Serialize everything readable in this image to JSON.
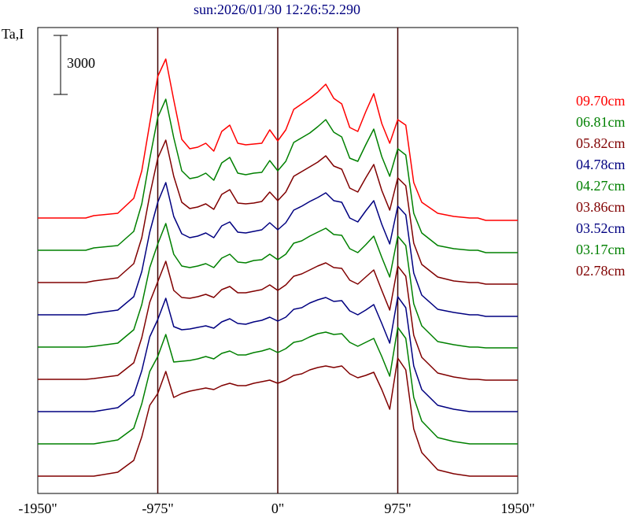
{
  "chart_data": {
    "type": "line",
    "title": "sun:2026/01/30 12:26:52.290",
    "ylabel": "Ta,I",
    "scale_bar": 3000,
    "x": [
      -1950,
      -1560,
      -1495,
      -1300,
      -1170,
      -1105,
      -1040,
      -975,
      -910,
      -845,
      -780,
      -715,
      -650,
      -585,
      -520,
      -455,
      -390,
      -325,
      -260,
      -195,
      -130,
      -65,
      0,
      65,
      130,
      195,
      260,
      325,
      390,
      455,
      520,
      585,
      650,
      715,
      780,
      845,
      910,
      975,
      1040,
      1105,
      1170,
      1300,
      1430,
      1560,
      1625,
      1690,
      1950
    ],
    "xlim": [
      -1950,
      1950
    ],
    "xticks": [
      {
        "value": -1950,
        "label": "-1950\""
      },
      {
        "value": -975,
        "label": "-975\""
      },
      {
        "value": 0,
        "label": "0\""
      },
      {
        "value": 975,
        "label": "975\""
      },
      {
        "value": 1950,
        "label": "1950\""
      }
    ],
    "grid": true,
    "series": [
      {
        "name": "09.70cm",
        "color": "#ff0000",
        "values": [
          0,
          0,
          120,
          240,
          1000,
          2400,
          4800,
          7200,
          8080,
          6000,
          4000,
          3520,
          3600,
          3800,
          3400,
          4400,
          4720,
          3800,
          3720,
          3760,
          3800,
          4480,
          3920,
          4480,
          5520,
          5800,
          6080,
          6400,
          6800,
          6080,
          5800,
          4600,
          4400,
          5400,
          6320,
          4800,
          3800,
          5000,
          4720,
          1800,
          800,
          240,
          80,
          0,
          0,
          -120,
          -120
        ]
      },
      {
        "name": "06.81cm",
        "color": "#008000",
        "values": [
          0,
          0,
          120,
          240,
          960,
          2360,
          4640,
          6760,
          7680,
          5720,
          4040,
          3640,
          3720,
          3920,
          3560,
          4440,
          4720,
          3920,
          3840,
          3920,
          3960,
          4560,
          4040,
          4520,
          5480,
          5720,
          5960,
          6280,
          6640,
          6000,
          5760,
          4680,
          4520,
          5360,
          6160,
          4760,
          3760,
          5160,
          4840,
          1880,
          880,
          240,
          80,
          0,
          0,
          -120,
          -120
        ]
      },
      {
        "name": "05.82cm",
        "color": "#800000",
        "values": [
          0,
          0,
          80,
          240,
          960,
          2280,
          4440,
          6320,
          7240,
          5400,
          4080,
          3760,
          3840,
          4000,
          3720,
          4480,
          4720,
          4040,
          4000,
          4040,
          4120,
          4600,
          4160,
          4600,
          5400,
          5640,
          5880,
          6120,
          6440,
          5920,
          5760,
          4800,
          4600,
          5320,
          6000,
          4680,
          3680,
          5320,
          4920,
          2000,
          920,
          280,
          80,
          0,
          0,
          -80,
          -80
        ]
      },
      {
        "name": "04.78cm",
        "color": "#000080",
        "values": [
          0,
          0,
          80,
          240,
          920,
          2200,
          4200,
          5720,
          6720,
          5000,
          4120,
          3920,
          4000,
          4160,
          3920,
          4520,
          4720,
          4200,
          4160,
          4240,
          4320,
          4680,
          4320,
          4680,
          5320,
          5520,
          5760,
          5960,
          6200,
          5800,
          5720,
          4920,
          4720,
          5280,
          5800,
          4600,
          3600,
          5520,
          5080,
          2120,
          1000,
          280,
          120,
          0,
          0,
          -80,
          -80
        ]
      },
      {
        "name": "04.27cm",
        "color": "#008000",
        "values": [
          0,
          0,
          40,
          200,
          880,
          2160,
          4040,
          5240,
          6280,
          4720,
          4120,
          4040,
          4120,
          4240,
          4040,
          4520,
          4720,
          4320,
          4280,
          4400,
          4440,
          4720,
          4440,
          4720,
          5280,
          5400,
          5640,
          5840,
          6040,
          5720,
          5680,
          5000,
          4800,
          5200,
          5640,
          4560,
          3560,
          5640,
          5160,
          2200,
          1080,
          280,
          120,
          0,
          0,
          -40,
          -40
        ]
      },
      {
        "name": "03.86cm",
        "color": "#800000",
        "values": [
          0,
          0,
          40,
          200,
          840,
          2120,
          3920,
          4960,
          6000,
          4520,
          4160,
          4120,
          4200,
          4320,
          4160,
          4560,
          4720,
          4400,
          4400,
          4480,
          4560,
          4800,
          4520,
          4800,
          5240,
          5360,
          5560,
          5760,
          5920,
          5680,
          5640,
          5040,
          4840,
          5200,
          5560,
          4520,
          3520,
          5760,
          5240,
          2240,
          1120,
          320,
          120,
          0,
          0,
          -40,
          -40
        ]
      },
      {
        "name": "03.52cm",
        "color": "#000080",
        "values": [
          0,
          0,
          0,
          200,
          840,
          2080,
          3800,
          4680,
          5760,
          4320,
          4160,
          4200,
          4280,
          4360,
          4240,
          4560,
          4720,
          4480,
          4440,
          4560,
          4640,
          4800,
          4600,
          4800,
          5200,
          5280,
          5520,
          5680,
          5800,
          5600,
          5640,
          5120,
          4920,
          5160,
          5440,
          4480,
          3480,
          5840,
          5280,
          2320,
          1120,
          320,
          120,
          0,
          0,
          0,
          0
        ]
      },
      {
        "name": "03.17cm",
        "color": "#008000",
        "values": [
          0,
          0,
          0,
          200,
          800,
          2040,
          3680,
          4440,
          5560,
          4160,
          4200,
          4240,
          4320,
          4440,
          4320,
          4600,
          4720,
          4520,
          4520,
          4640,
          4720,
          4840,
          4640,
          4840,
          5160,
          5240,
          5440,
          5600,
          5680,
          5560,
          5600,
          5160,
          4960,
          5160,
          5360,
          4440,
          3440,
          5920,
          5360,
          2360,
          1160,
          320,
          120,
          0,
          0,
          0,
          0
        ]
      },
      {
        "name": "02.78cm",
        "color": "#800000",
        "values": [
          0,
          0,
          0,
          200,
          800,
          2000,
          3600,
          4200,
          5320,
          4000,
          4200,
          4320,
          4400,
          4480,
          4400,
          4600,
          4720,
          4600,
          4600,
          4720,
          4800,
          4880,
          4720,
          4880,
          5120,
          5200,
          5400,
          5520,
          5600,
          5520,
          5600,
          5200,
          5000,
          5120,
          5280,
          4400,
          3400,
          6000,
          5400,
          2400,
          1200,
          320,
          120,
          0,
          0,
          0,
          0
        ]
      }
    ]
  }
}
